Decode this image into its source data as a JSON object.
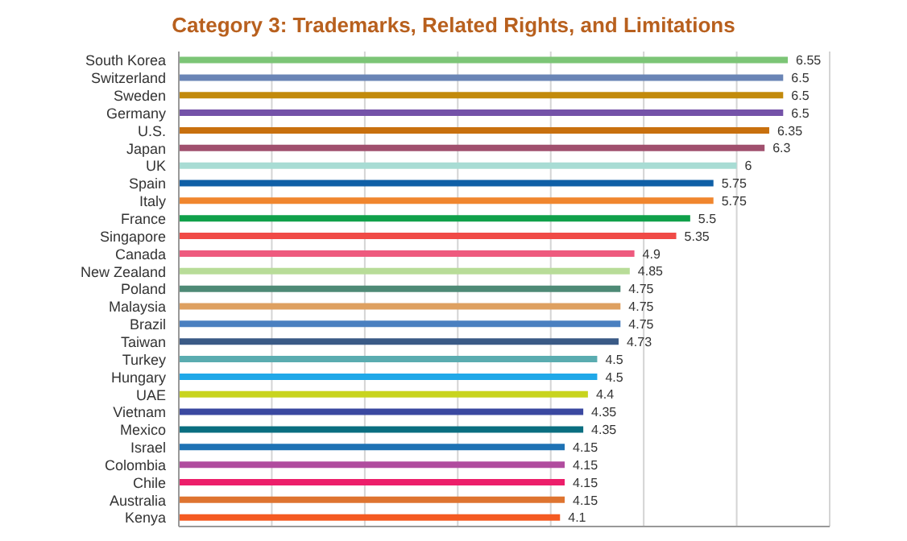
{
  "chart_data": {
    "type": "bar",
    "orientation": "horizontal",
    "title": "Category 3: Trademarks, Related Rights, and Limitations",
    "categories": [
      "South Korea",
      "Switzerland",
      "Sweden",
      "Germany",
      "U.S.",
      "Japan",
      "UK",
      "Spain",
      "Italy",
      "France",
      "Singapore",
      "Canada",
      "New Zealand",
      "Poland",
      "Malaysia",
      "Brazil",
      "Taiwan",
      "Turkey",
      "Hungary",
      "UAE",
      "Vietnam",
      "Mexico",
      "Israel",
      "Colombia",
      "Chile",
      "Australia",
      "Kenya"
    ],
    "values": [
      6.55,
      6.5,
      6.5,
      6.5,
      6.35,
      6.3,
      6,
      5.75,
      5.75,
      5.5,
      5.35,
      4.9,
      4.85,
      4.75,
      4.75,
      4.75,
      4.73,
      4.5,
      4.5,
      4.4,
      4.35,
      4.35,
      4.15,
      4.15,
      4.15,
      4.15,
      4.1
    ],
    "colors": [
      "#7cc576",
      "#6a85b6",
      "#c28a0c",
      "#7452a8",
      "#c8700e",
      "#a0506e",
      "#a8dcd4",
      "#0f5fa6",
      "#f0862e",
      "#0fa04a",
      "#f04a46",
      "#ee5a7e",
      "#b8dc98",
      "#4e8a76",
      "#dea060",
      "#4a80c0",
      "#3a5a86",
      "#5aacb0",
      "#20a8e8",
      "#c8d41e",
      "#3a48a0",
      "#0a6e80",
      "#1e72b4",
      "#b04c9e",
      "#ec1e6a",
      "#de7430",
      "#f45a22"
    ],
    "xlim": [
      0,
      7
    ],
    "tick_labels": "y",
    "grid": "x",
    "data_labels": true
  }
}
